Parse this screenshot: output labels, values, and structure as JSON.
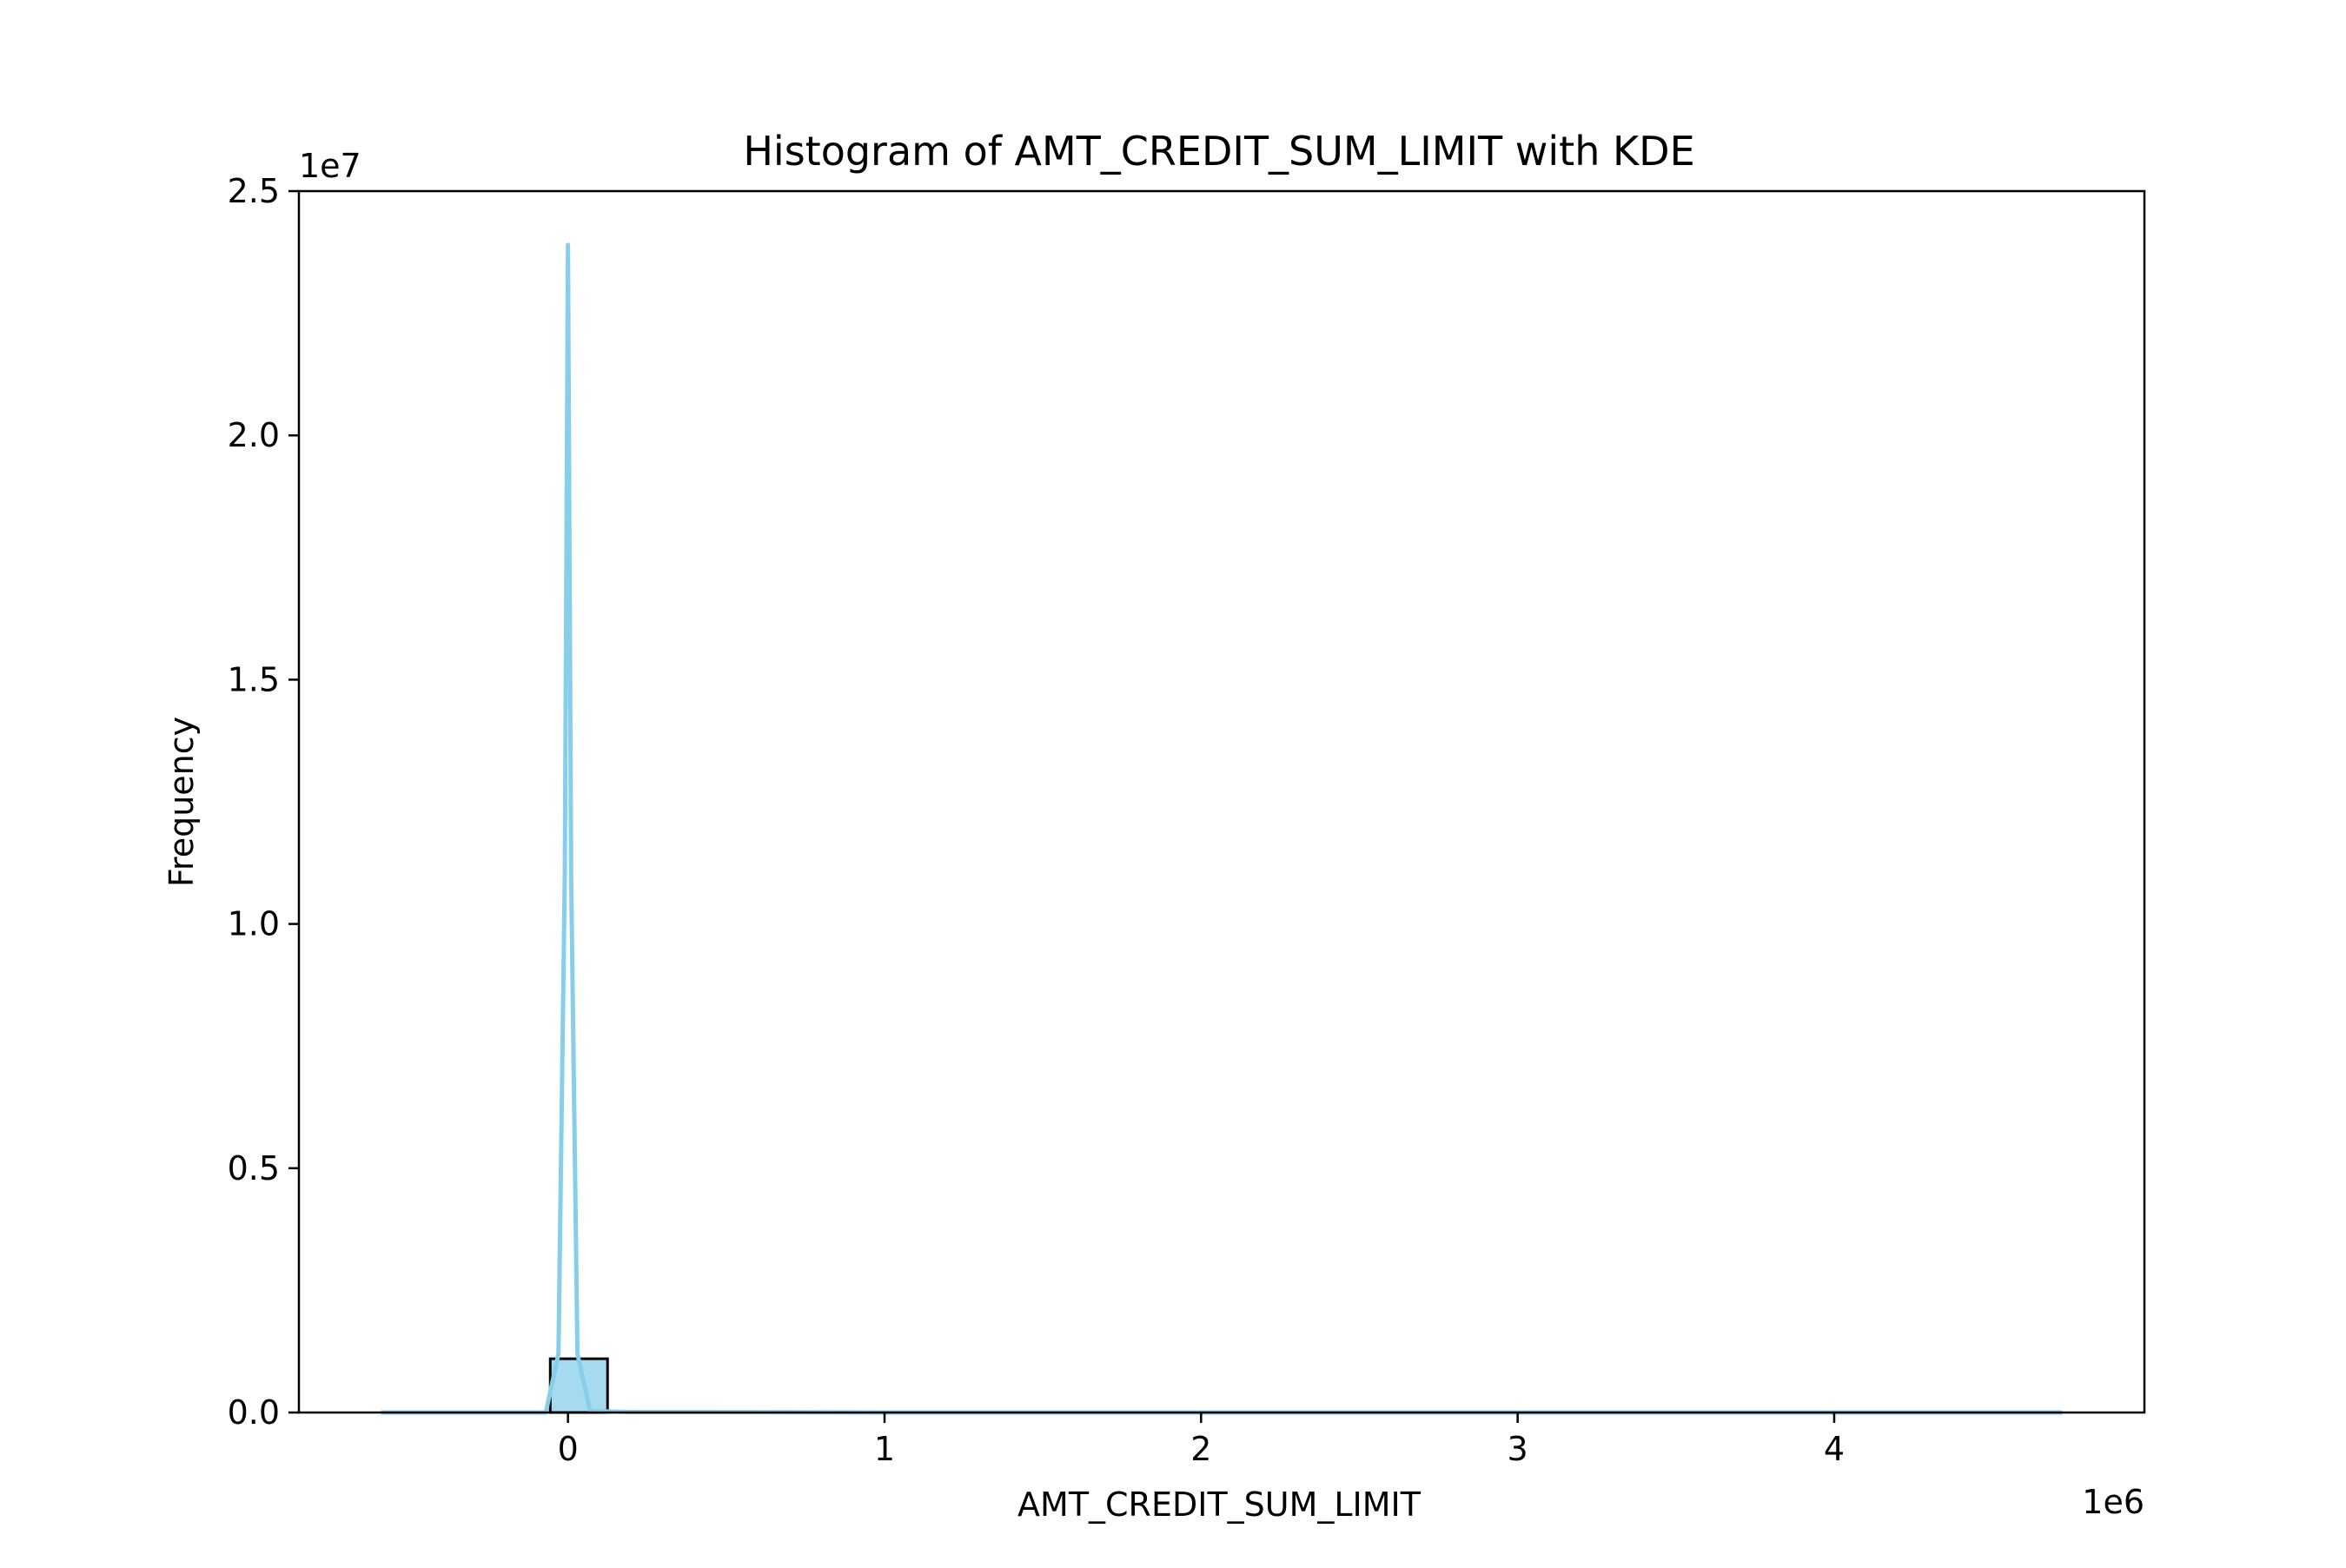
{
  "chart_data": {
    "type": "bar",
    "title": "Histogram of AMT_CREDIT_SUM_LIMIT with KDE",
    "xlabel": "AMT_CREDIT_SUM_LIMIT",
    "ylabel": "Frequency",
    "x_offset_text": "1e6",
    "y_offset_text": "1e7",
    "xlim": [
      -0.85,
      4.98
    ],
    "ylim": [
      0,
      2.5
    ],
    "x_ticks": [
      0,
      1,
      2,
      3,
      4
    ],
    "x_tick_labels": [
      "0",
      "1",
      "2",
      "3",
      "4"
    ],
    "y_ticks": [
      0,
      0.5,
      1.0,
      1.5,
      2.0,
      2.5
    ],
    "y_tick_labels": [
      "0.0",
      "0.5",
      "1.0",
      "1.5",
      "2.0",
      "2.5"
    ],
    "grid": false,
    "legend": "none",
    "histogram": {
      "bin_edges": [
        -0.056,
        0.125
      ],
      "counts": [
        0.11
      ],
      "color": "#87ceeb",
      "edge_color": "#000000"
    },
    "kde": {
      "color": "#87ceeb",
      "x": [
        -0.59,
        -0.3,
        -0.07,
        -0.03,
        -0.01,
        0.0,
        0.01,
        0.03,
        0.07,
        0.2,
        0.45,
        1.0,
        2.0,
        3.0,
        4.0,
        4.72
      ],
      "y": [
        0.0,
        0.0,
        0.0,
        0.12,
        1.1,
        2.39,
        1.1,
        0.12,
        0.003,
        0.001,
        0.001,
        0.0,
        0.0,
        0.0,
        0.0,
        0.0
      ]
    }
  }
}
